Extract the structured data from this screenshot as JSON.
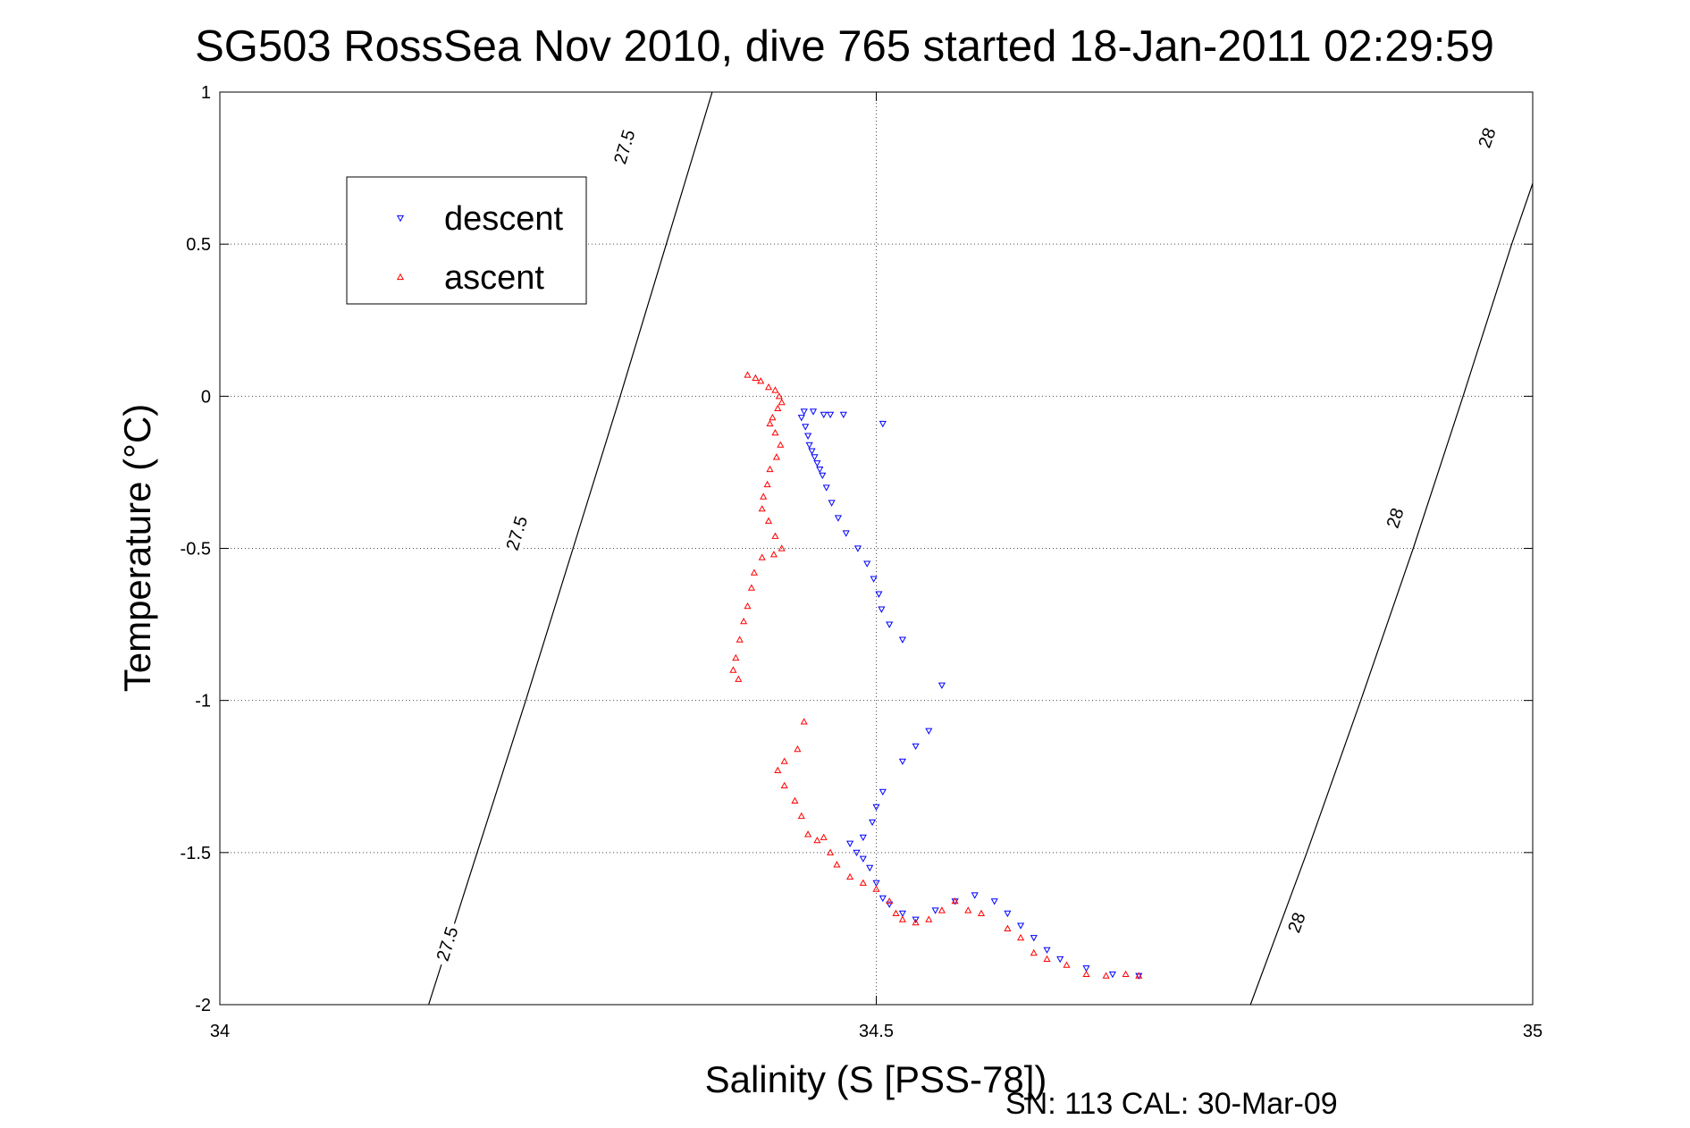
{
  "chart_data": {
    "type": "scatter",
    "title": "SG503 RossSea Nov 2010, dive 765 started 18-Jan-2011 02:29:59",
    "xlabel": "Salinity (S [PSS-78])",
    "ylabel": "Temperature (°C)",
    "footer": "SN: 113  CAL: 30-Mar-09",
    "xlim": [
      34,
      35
    ],
    "ylim": [
      -2,
      1
    ],
    "xticks": [
      "34",
      "34.5",
      "35"
    ],
    "yticks": [
      "-2",
      "-1.5",
      "-1",
      "-0.5",
      "0",
      "0.5",
      "1"
    ],
    "grid": true,
    "legend_position": "top-left",
    "series": [
      {
        "name": "descent",
        "color": "#0000ff",
        "marker": "triangle-down",
        "points": [
          [
            34.445,
            -0.05
          ],
          [
            34.452,
            -0.05
          ],
          [
            34.46,
            -0.06
          ],
          [
            34.465,
            -0.06
          ],
          [
            34.475,
            -0.06
          ],
          [
            34.505,
            -0.09
          ],
          [
            34.443,
            -0.07
          ],
          [
            34.446,
            -0.1
          ],
          [
            34.448,
            -0.13
          ],
          [
            34.449,
            -0.16
          ],
          [
            34.451,
            -0.18
          ],
          [
            34.453,
            -0.2
          ],
          [
            34.455,
            -0.22
          ],
          [
            34.457,
            -0.24
          ],
          [
            34.459,
            -0.26
          ],
          [
            34.462,
            -0.3
          ],
          [
            34.466,
            -0.35
          ],
          [
            34.471,
            -0.4
          ],
          [
            34.477,
            -0.45
          ],
          [
            34.486,
            -0.5
          ],
          [
            34.493,
            -0.55
          ],
          [
            34.498,
            -0.6
          ],
          [
            34.502,
            -0.65
          ],
          [
            34.504,
            -0.7
          ],
          [
            34.51,
            -0.75
          ],
          [
            34.52,
            -0.8
          ],
          [
            34.55,
            -0.95
          ],
          [
            34.54,
            -1.1
          ],
          [
            34.53,
            -1.15
          ],
          [
            34.52,
            -1.2
          ],
          [
            34.505,
            -1.3
          ],
          [
            34.5,
            -1.35
          ],
          [
            34.497,
            -1.4
          ],
          [
            34.49,
            -1.45
          ],
          [
            34.485,
            -1.5
          ],
          [
            34.48,
            -1.47
          ],
          [
            34.49,
            -1.52
          ],
          [
            34.495,
            -1.55
          ],
          [
            34.5,
            -1.6
          ],
          [
            34.505,
            -1.65
          ],
          [
            34.51,
            -1.67
          ],
          [
            34.52,
            -1.7
          ],
          [
            34.53,
            -1.72
          ],
          [
            34.545,
            -1.69
          ],
          [
            34.56,
            -1.66
          ],
          [
            34.575,
            -1.64
          ],
          [
            34.59,
            -1.66
          ],
          [
            34.6,
            -1.7
          ],
          [
            34.61,
            -1.74
          ],
          [
            34.62,
            -1.78
          ],
          [
            34.63,
            -1.82
          ],
          [
            34.64,
            -1.85
          ],
          [
            34.66,
            -1.88
          ],
          [
            34.68,
            -1.9
          ],
          [
            34.7,
            -1.905
          ]
        ]
      },
      {
        "name": "ascent",
        "color": "#ff0000",
        "marker": "triangle-up",
        "points": [
          [
            34.402,
            0.07
          ],
          [
            34.408,
            0.06
          ],
          [
            34.412,
            0.05
          ],
          [
            34.418,
            0.03
          ],
          [
            34.423,
            0.02
          ],
          [
            34.426,
            0.0
          ],
          [
            34.428,
            -0.02
          ],
          [
            34.425,
            -0.04
          ],
          [
            34.421,
            -0.07
          ],
          [
            34.419,
            -0.09
          ],
          [
            34.423,
            -0.12
          ],
          [
            34.427,
            -0.16
          ],
          [
            34.424,
            -0.2
          ],
          [
            34.419,
            -0.24
          ],
          [
            34.417,
            -0.29
          ],
          [
            34.414,
            -0.33
          ],
          [
            34.413,
            -0.37
          ],
          [
            34.418,
            -0.41
          ],
          [
            34.423,
            -0.46
          ],
          [
            34.428,
            -0.5
          ],
          [
            34.422,
            -0.52
          ],
          [
            34.413,
            -0.53
          ],
          [
            34.407,
            -0.58
          ],
          [
            34.405,
            -0.63
          ],
          [
            34.402,
            -0.69
          ],
          [
            34.399,
            -0.74
          ],
          [
            34.396,
            -0.8
          ],
          [
            34.393,
            -0.86
          ],
          [
            34.391,
            -0.9
          ],
          [
            34.395,
            -0.93
          ],
          [
            34.445,
            -1.07
          ],
          [
            34.44,
            -1.16
          ],
          [
            34.43,
            -1.2
          ],
          [
            34.425,
            -1.23
          ],
          [
            34.43,
            -1.28
          ],
          [
            34.438,
            -1.33
          ],
          [
            34.443,
            -1.38
          ],
          [
            34.448,
            -1.44
          ],
          [
            34.455,
            -1.46
          ],
          [
            34.46,
            -1.45
          ],
          [
            34.465,
            -1.5
          ],
          [
            34.47,
            -1.54
          ],
          [
            34.48,
            -1.58
          ],
          [
            34.49,
            -1.6
          ],
          [
            34.5,
            -1.62
          ],
          [
            34.51,
            -1.66
          ],
          [
            34.515,
            -1.7
          ],
          [
            34.52,
            -1.72
          ],
          [
            34.53,
            -1.73
          ],
          [
            34.54,
            -1.72
          ],
          [
            34.55,
            -1.69
          ],
          [
            34.56,
            -1.66
          ],
          [
            34.57,
            -1.69
          ],
          [
            34.58,
            -1.7
          ],
          [
            34.6,
            -1.75
          ],
          [
            34.61,
            -1.78
          ],
          [
            34.62,
            -1.83
          ],
          [
            34.63,
            -1.85
          ],
          [
            34.645,
            -1.87
          ],
          [
            34.66,
            -1.9
          ],
          [
            34.675,
            -1.905
          ],
          [
            34.69,
            -1.9
          ],
          [
            34.7,
            -1.905
          ]
        ]
      }
    ],
    "isopycnals": [
      {
        "label": "27.5",
        "points": [
          [
            34.159,
            -2.0
          ],
          [
            34.196,
            -1.5
          ],
          [
            34.233,
            -1.0
          ],
          [
            34.269,
            -0.5
          ],
          [
            34.305,
            0.0
          ],
          [
            34.34,
            0.5
          ],
          [
            34.375,
            1.0
          ]
        ],
        "label_points": [
          [
            34.173,
            -1.8
          ],
          [
            34.226,
            -0.45
          ],
          [
            34.308,
            0.82
          ]
        ]
      },
      {
        "label": "28",
        "points": [
          [
            34.785,
            -2.0
          ],
          [
            34.828,
            -1.5
          ],
          [
            34.869,
            -1.0
          ],
          [
            34.909,
            -0.5
          ],
          [
            34.947,
            0.0
          ],
          [
            34.984,
            0.5
          ],
          [
            35.02,
            0.95
          ]
        ],
        "label_points": [
          [
            34.82,
            -1.73
          ],
          [
            34.895,
            -0.4
          ],
          [
            34.965,
            0.85
          ]
        ]
      }
    ]
  }
}
